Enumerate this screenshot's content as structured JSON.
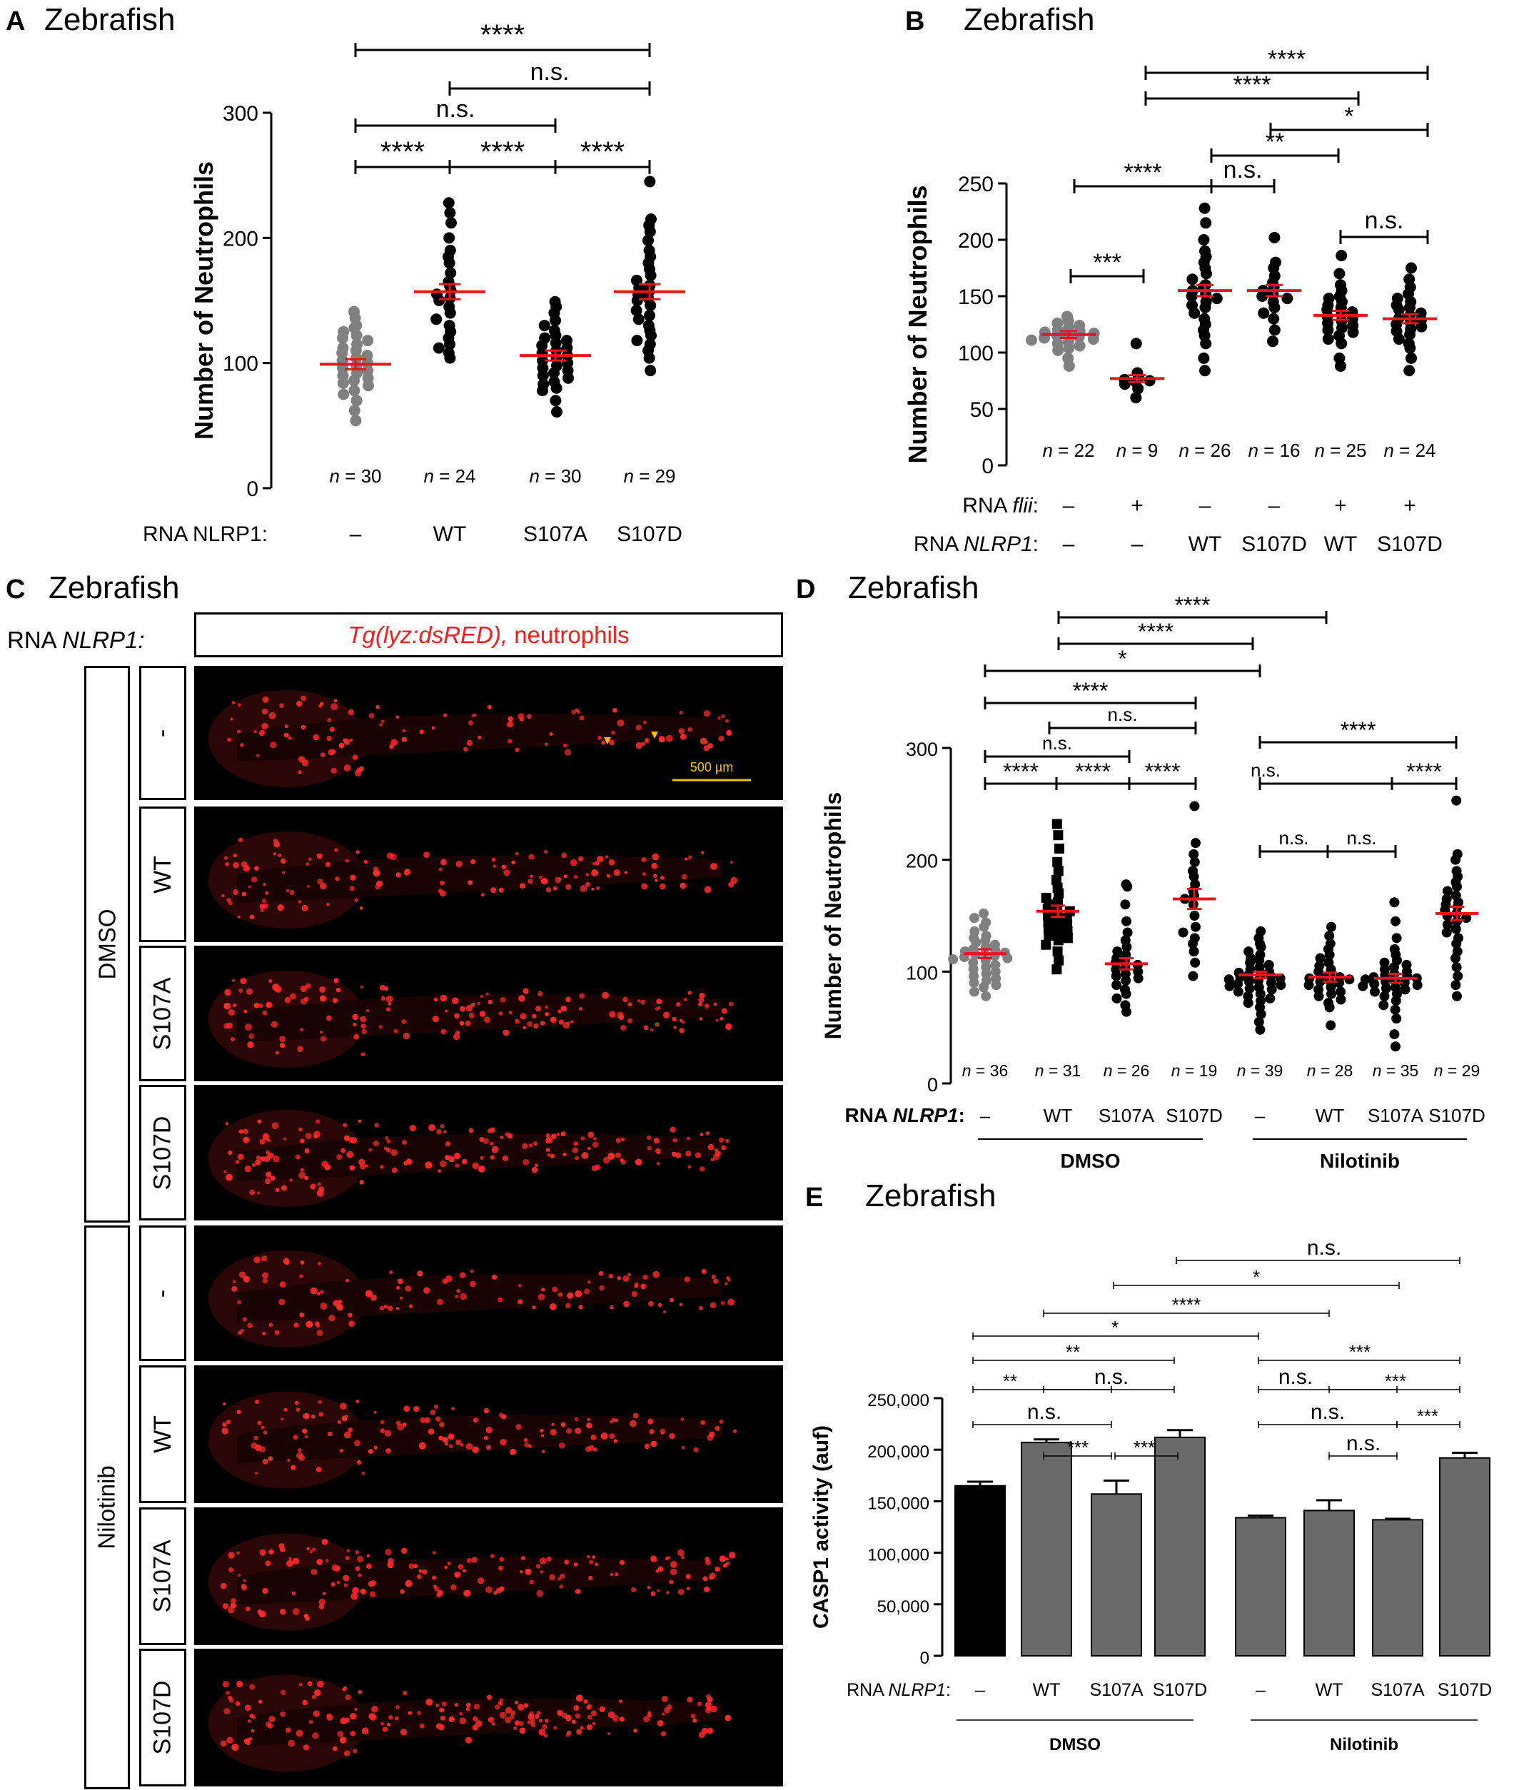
{
  "panels": {
    "A": {
      "letter": "A",
      "title": "Zebrafish"
    },
    "B": {
      "letter": "B",
      "title": "Zebrafish"
    },
    "C": {
      "letter": "C",
      "title": "Zebrafish"
    },
    "D": {
      "letter": "D",
      "title": "Zebrafish"
    },
    "E": {
      "letter": "E",
      "title": "Zebrafish"
    }
  },
  "chart_data": [
    {
      "panel": "A",
      "type": "scatter",
      "ylabel": "Number of Neutrophils",
      "ylim": [
        0,
        300
      ],
      "yticks": [
        0,
        100,
        200,
        300
      ],
      "row_label": "RNA NLRP1:",
      "categories": [
        "–",
        "WT",
        "S107A",
        "S107D"
      ],
      "n_labels": [
        "n = 30",
        "n = 24",
        "n = 30",
        "n = 29"
      ],
      "means": [
        99,
        157,
        106,
        157
      ],
      "sem": [
        4,
        6,
        4,
        6
      ],
      "point_colors": [
        "#808080",
        "#000000",
        "#000000",
        "#000000"
      ],
      "mean_color": "#e8141c",
      "series": [
        {
          "values": [
            141,
            136,
            130,
            128,
            125,
            122,
            120,
            118,
            115,
            112,
            110,
            108,
            106,
            104,
            102,
            100,
            98,
            96,
            94,
            92,
            90,
            88,
            86,
            84,
            82,
            78,
            75,
            70,
            62,
            54
          ]
        },
        {
          "values": [
            228,
            220,
            212,
            200,
            190,
            185,
            180,
            172,
            165,
            162,
            158,
            155,
            152,
            150,
            145,
            140,
            135,
            130,
            125,
            120,
            115,
            112,
            108,
            104
          ]
        },
        {
          "values": [
            149,
            145,
            140,
            134,
            130,
            126,
            122,
            120,
            118,
            116,
            114,
            112,
            110,
            108,
            106,
            104,
            102,
            100,
            98,
            96,
            94,
            92,
            90,
            88,
            85,
            83,
            80,
            78,
            70,
            61
          ]
        },
        {
          "values": [
            245,
            215,
            210,
            205,
            198,
            190,
            185,
            180,
            175,
            170,
            166,
            162,
            160,
            157,
            155,
            152,
            150,
            146,
            142,
            138,
            135,
            130,
            126,
            122,
            118,
            115,
            110,
            104,
            94
          ]
        }
      ],
      "comparisons": [
        {
          "from": 0,
          "to": 3,
          "label": "****"
        },
        {
          "from": 1,
          "to": 3,
          "label": "n.s."
        },
        {
          "from": 0,
          "to": 2,
          "label": "n.s."
        },
        {
          "from": 0,
          "to": 1,
          "label": "****"
        },
        {
          "from": 1,
          "to": 2,
          "label": "****"
        },
        {
          "from": 2,
          "to": 3,
          "label": "****"
        }
      ]
    },
    {
      "panel": "B",
      "type": "scatter",
      "ylabel": "Number of Neutrophils",
      "ylim": [
        0,
        250
      ],
      "yticks": [
        0,
        50,
        100,
        150,
        200,
        250
      ],
      "rows": [
        {
          "label_prefix": "RNA ",
          "label_italic": "flii",
          "label_suffix": ":",
          "values": [
            "–",
            "+",
            "–",
            "–",
            "+",
            "+"
          ]
        },
        {
          "label_prefix": "RNA ",
          "label_italic": "NLRP1",
          "label_suffix": ":",
          "values": [
            "–",
            "–",
            "WT",
            "S107D",
            "WT",
            "S107D"
          ]
        }
      ],
      "n_labels": [
        "n = 22",
        "n = 9",
        "n = 26",
        "n = 16",
        "n = 25",
        "n = 24"
      ],
      "means": [
        116,
        77,
        155,
        155,
        133,
        130
      ],
      "sem": [
        3,
        3,
        5,
        5,
        4,
        4
      ],
      "point_colors": [
        "#808080",
        "#000000",
        "#000000",
        "#000000",
        "#000000",
        "#000000"
      ],
      "mean_color": "#e8141c",
      "series": [
        {
          "values": [
            132,
            128,
            126,
            124,
            122,
            120,
            119,
            118,
            117,
            116,
            115,
            114,
            113,
            112,
            111,
            110,
            108,
            106,
            104,
            102,
            95,
            88
          ]
        },
        {
          "values": [
            108,
            82,
            78,
            76,
            75,
            74,
            72,
            68,
            60
          ]
        },
        {
          "values": [
            228,
            215,
            200,
            190,
            185,
            180,
            175,
            170,
            165,
            160,
            158,
            155,
            152,
            150,
            148,
            145,
            142,
            140,
            135,
            130,
            125,
            120,
            115,
            108,
            95,
            84
          ]
        },
        {
          "values": [
            202,
            180,
            175,
            168,
            162,
            158,
            155,
            152,
            150,
            148,
            145,
            140,
            135,
            130,
            120,
            110
          ]
        },
        {
          "values": [
            186,
            170,
            160,
            155,
            150,
            148,
            145,
            142,
            140,
            138,
            136,
            134,
            132,
            130,
            128,
            126,
            124,
            122,
            120,
            118,
            115,
            112,
            108,
            95,
            88
          ]
        },
        {
          "values": [
            175,
            165,
            158,
            152,
            148,
            145,
            142,
            140,
            138,
            135,
            133,
            131,
            129,
            127,
            125,
            123,
            121,
            119,
            116,
            112,
            108,
            104,
            95,
            84
          ]
        }
      ],
      "comparisons": [
        {
          "from": 2,
          "to": 5,
          "label": "****"
        },
        {
          "from": 2,
          "to": 4,
          "label": "****"
        },
        {
          "from": 3,
          "to": 5,
          "label": "*"
        },
        {
          "from": 2,
          "to": 4,
          "label": "**"
        },
        {
          "from": 0,
          "to": 2,
          "label": "****"
        },
        {
          "from": 2,
          "to": 3,
          "label": "n.s."
        },
        {
          "from": 4,
          "to": 5,
          "label": "n.s."
        },
        {
          "from": 0,
          "to": 1,
          "label": "***"
        }
      ]
    },
    {
      "panel": "D",
      "type": "scatter",
      "ylabel": "Number of Neutrophils",
      "ylim": [
        0,
        300
      ],
      "yticks": [
        0,
        100,
        200,
        300
      ],
      "row_label_prefix": "RNA ",
      "row_label_italic": "NLRP1",
      "row_label_suffix": ":",
      "categories": [
        "–",
        "WT",
        "S107A",
        "S107D",
        "–",
        "WT",
        "S107A",
        "S107D"
      ],
      "groups": [
        {
          "name": "DMSO",
          "from": 0,
          "to": 3
        },
        {
          "name": "Nilotinib",
          "from": 4,
          "to": 7
        }
      ],
      "n_labels": [
        "n = 36",
        "n = 31",
        "n = 26",
        "n = 19",
        "n = 39",
        "n = 28",
        "n = 35",
        "n = 29"
      ],
      "means": [
        116,
        154,
        107,
        165,
        97,
        95,
        94,
        152
      ],
      "sem": [
        4,
        5,
        5,
        9,
        3,
        4,
        4,
        6
      ],
      "point_colors": [
        "#808080",
        "#000000",
        "#000000",
        "#000000",
        "#000000",
        "#000000",
        "#000000",
        "#000000"
      ],
      "point_shapes": [
        "circle",
        "square",
        "circle",
        "circle",
        "circle",
        "circle",
        "circle",
        "circle"
      ],
      "mean_color": "#e8141c",
      "series": [
        {
          "values": [
            152,
            148,
            144,
            140,
            136,
            132,
            130,
            128,
            126,
            124,
            122,
            120,
            119,
            118,
            117,
            116,
            115,
            114,
            113,
            112,
            111,
            110,
            108,
            106,
            104,
            102,
            100,
            98,
            96,
            94,
            92,
            90,
            88,
            86,
            82,
            78
          ]
        },
        {
          "values": [
            232,
            222,
            210,
            198,
            190,
            182,
            175,
            170,
            166,
            162,
            160,
            158,
            156,
            154,
            152,
            150,
            148,
            146,
            144,
            142,
            140,
            138,
            136,
            134,
            132,
            130,
            128,
            124,
            118,
            110,
            102
          ]
        },
        {
          "values": [
            178,
            176,
            160,
            145,
            135,
            128,
            122,
            118,
            115,
            112,
            110,
            108,
            106,
            104,
            102,
            100,
            98,
            96,
            94,
            92,
            88,
            84,
            80,
            76,
            70,
            64
          ]
        },
        {
          "values": [
            248,
            215,
            205,
            198,
            190,
            185,
            178,
            172,
            168,
            165,
            160,
            150,
            140,
            135,
            130,
            125,
            118,
            108,
            96
          ]
        },
        {
          "values": [
            136,
            130,
            125,
            122,
            118,
            115,
            112,
            110,
            108,
            106,
            104,
            102,
            100,
            99,
            98,
            97,
            96,
            95,
            94,
            93,
            92,
            91,
            90,
            89,
            88,
            87,
            86,
            85,
            84,
            82,
            80,
            78,
            76,
            74,
            72,
            68,
            62,
            55,
            48
          ]
        },
        {
          "values": [
            140,
            132,
            125,
            120,
            115,
            112,
            108,
            105,
            102,
            100,
            98,
            96,
            95,
            94,
            93,
            92,
            91,
            90,
            88,
            86,
            84,
            82,
            80,
            78,
            75,
            72,
            68,
            52
          ]
        },
        {
          "values": [
            162,
            145,
            130,
            120,
            115,
            110,
            108,
            106,
            104,
            102,
            100,
            98,
            97,
            96,
            95,
            94,
            93,
            92,
            91,
            90,
            89,
            88,
            87,
            86,
            85,
            84,
            82,
            80,
            78,
            74,
            70,
            66,
            58,
            44,
            33
          ]
        },
        {
          "values": [
            253,
            205,
            200,
            190,
            185,
            180,
            176,
            172,
            168,
            165,
            162,
            160,
            158,
            155,
            152,
            150,
            148,
            145,
            142,
            138,
            135,
            130,
            125,
            118,
            112,
            104,
            96,
            88,
            78
          ]
        }
      ],
      "comparisons": [
        {
          "from": 1,
          "to": 5,
          "label": "****"
        },
        {
          "from": 1,
          "to": 4,
          "label": "****"
        },
        {
          "from": 0,
          "to": 4,
          "label": "*"
        },
        {
          "from": 0,
          "to": 3,
          "label": "****"
        },
        {
          "from": 1,
          "to": 3,
          "label": "n.s."
        },
        {
          "from": 0,
          "to": 2,
          "label": "n.s."
        },
        {
          "from": 0,
          "to": 1,
          "label": "****"
        },
        {
          "from": 1,
          "to": 2,
          "label": "****"
        },
        {
          "from": 2,
          "to": 3,
          "label": "****"
        },
        {
          "from": 4,
          "to": 7,
          "label": "****"
        },
        {
          "from": 4,
          "to": 6,
          "label": "n.s."
        },
        {
          "from": 6,
          "to": 7,
          "label": "****"
        },
        {
          "from": 4,
          "to": 5,
          "label": "n.s."
        },
        {
          "from": 5,
          "to": 6,
          "label": "n.s."
        }
      ]
    },
    {
      "panel": "E",
      "type": "bar",
      "ylabel": "CASP1 activity (auf)",
      "ylim": [
        0,
        250000
      ],
      "yticks": [
        0,
        50000,
        100000,
        150000,
        200000,
        250000
      ],
      "ytick_labels": [
        "0",
        "50,000",
        "100,000",
        "150,000",
        "200,000",
        "250,000"
      ],
      "row_label_prefix": "RNA ",
      "row_label_italic": "NLRP1",
      "row_label_suffix": ":",
      "categories": [
        "–",
        "WT",
        "S107A",
        "S107D",
        "–",
        "WT",
        "S107A",
        "S107D"
      ],
      "groups": [
        {
          "name": "DMSO",
          "from": 0,
          "to": 3
        },
        {
          "name": "Nilotinib",
          "from": 4,
          "to": 7
        }
      ],
      "values": [
        165000,
        207000,
        157000,
        212000,
        134000,
        141000,
        132000,
        192000
      ],
      "errors": [
        4000,
        3000,
        13000,
        7000,
        2000,
        10000,
        1000,
        5000
      ],
      "bar_colors": [
        "#000000",
        "#6a6a6a",
        "#6a6a6a",
        "#6a6a6a",
        "#6a6a6a",
        "#6a6a6a",
        "#6a6a6a",
        "#6a6a6a"
      ],
      "comparisons": [
        {
          "from": 3,
          "to": 7,
          "label": "n.s."
        },
        {
          "from": 2,
          "to": 6,
          "label": "*"
        },
        {
          "from": 1,
          "to": 5,
          "label": "****"
        },
        {
          "from": 0,
          "to": 4,
          "label": "*"
        },
        {
          "from": 0,
          "to": 3,
          "label": "**"
        },
        {
          "from": 0,
          "to": 2,
          "label": "**"
        },
        {
          "from": 1,
          "to": 3,
          "label": "n.s."
        },
        {
          "from": 0,
          "to": 2,
          "label": "n.s."
        },
        {
          "from": 2,
          "to": 3,
          "label": "***"
        },
        {
          "from": 1,
          "to": 2,
          "label": "***"
        },
        {
          "from": 4,
          "to": 7,
          "label": "***"
        },
        {
          "from": 4,
          "to": 6,
          "label": "n.s."
        },
        {
          "from": 5,
          "to": 7,
          "label": "***"
        },
        {
          "from": 4,
          "to": 6,
          "label": "n.s."
        },
        {
          "from": 6,
          "to": 7,
          "label": "***"
        },
        {
          "from": 5,
          "to": 6,
          "label": "n.s."
        }
      ]
    }
  ],
  "panel_C": {
    "row_label_prefix": "RNA ",
    "row_label_italic": "NLRP1:",
    "header_italic": "Tg(lyz:dsRED),",
    "header_plain": " neutrophils",
    "header_color": "#ff1a1a",
    "treatments": [
      "DMSO",
      "Nilotinib"
    ],
    "rows": [
      "-",
      "WT",
      "S107A",
      "S107D",
      "-",
      "WT",
      "S107A",
      "S107D"
    ],
    "scale_bar": "500 µm",
    "scale_bar_color": "#f2c200",
    "dot_color": "#ff2a2a"
  }
}
